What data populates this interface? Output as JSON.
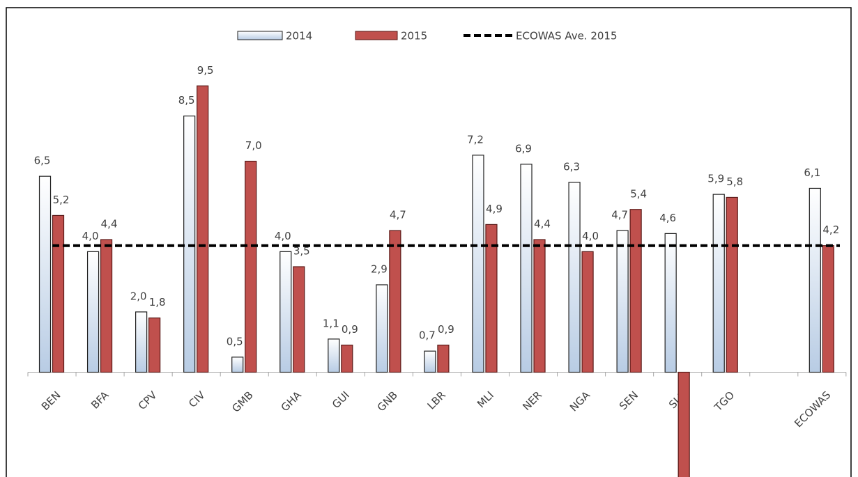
{
  "chart_data": {
    "type": "bar",
    "categories": [
      "BEN",
      "BFA",
      "CPV",
      "CIV",
      "GMB",
      "GHA",
      "GUI",
      "GNB",
      "LBR",
      "MLI",
      "NER",
      "NGA",
      "SEN",
      "SLE",
      "TGO",
      null,
      "ECOWAS"
    ],
    "series": [
      {
        "name": "2014",
        "color": "#b8cce4",
        "values": [
          6.5,
          4.0,
          2.0,
          8.5,
          0.5,
          4.0,
          1.1,
          2.9,
          0.7,
          7.2,
          6.9,
          6.3,
          4.7,
          4.6,
          5.9,
          null,
          6.1
        ],
        "value_labels": [
          "6,5",
          "4,0",
          "2,0",
          "8,5",
          "0,5",
          "4,0",
          "1,1",
          "2,9",
          "0,7",
          "7,2",
          "6,9",
          "6,3",
          "4,7",
          "4,6",
          "5,9",
          null,
          "6,1"
        ]
      },
      {
        "name": "2015",
        "color": "#c0504d",
        "values": [
          5.2,
          4.4,
          1.8,
          9.5,
          7.0,
          3.5,
          0.9,
          4.7,
          0.9,
          4.9,
          4.4,
          4.0,
          5.4,
          -3.5,
          5.8,
          null,
          4.2
        ],
        "value_labels": [
          "5,2",
          "4,4",
          "1,8",
          "9,5",
          "7,0",
          "3,5",
          "0,9",
          "4,7",
          "0,9",
          "4,9",
          "4,4",
          "4,0",
          "5,4",
          null,
          "5,8",
          null,
          "4,2"
        ]
      }
    ],
    "reference_line": {
      "name": "ECOWAS Ave. 2015",
      "value": 4.2,
      "color": "#000000"
    },
    "ylim": [
      -3.5,
      10.5
    ],
    "legend": "top"
  }
}
